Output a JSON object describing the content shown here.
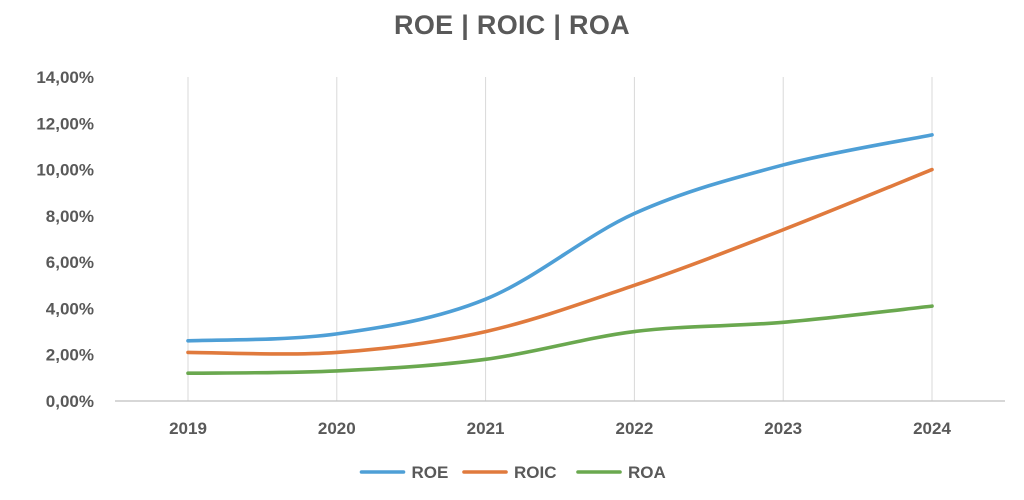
{
  "chart_data": {
    "type": "line",
    "title": "ROE | ROIC | ROA",
    "xlabel": "",
    "ylabel": "",
    "categories": [
      "2019",
      "2020",
      "2021",
      "2022",
      "2023",
      "2024"
    ],
    "y_tick_labels": [
      "0,00%",
      "2,00%",
      "4,00%",
      "6,00%",
      "8,00%",
      "10,00%",
      "12,00%",
      "14,00%"
    ],
    "ylim": [
      0,
      14
    ],
    "y_unit": "%",
    "grid": "vertical",
    "legend_position": "bottom",
    "smooth": true,
    "series": [
      {
        "name": "ROE",
        "color": "#4e9fd6",
        "values": [
          2.6,
          2.9,
          4.4,
          8.1,
          10.2,
          11.5
        ]
      },
      {
        "name": "ROIC",
        "color": "#e07a3d",
        "values": [
          2.1,
          2.1,
          3.0,
          5.0,
          7.4,
          10.0
        ]
      },
      {
        "name": "ROA",
        "color": "#6aa84f",
        "values": [
          1.2,
          1.3,
          1.8,
          3.0,
          3.4,
          4.1
        ]
      }
    ]
  }
}
